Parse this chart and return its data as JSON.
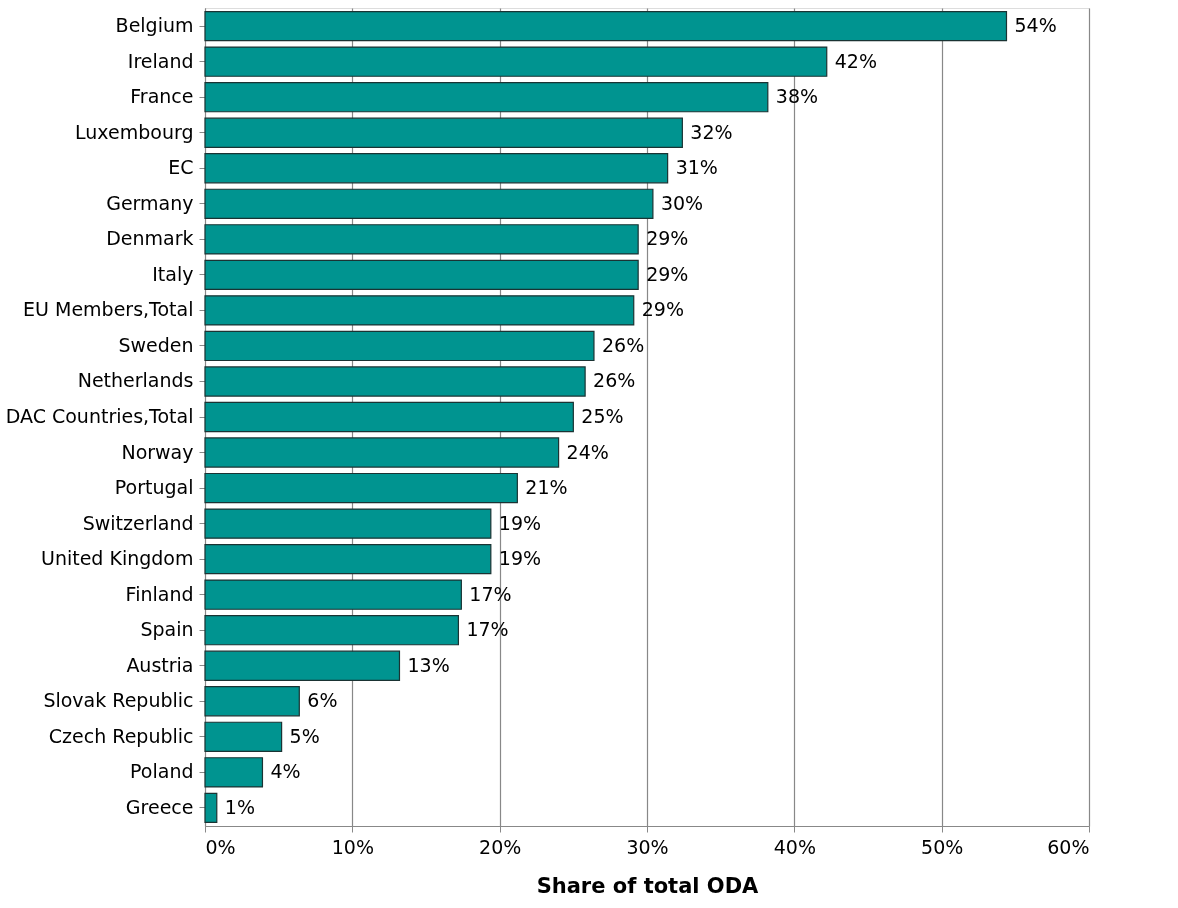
{
  "chart_data": {
    "type": "bar",
    "orientation": "horizontal",
    "xlabel": "Share of total ODA",
    "categories": [
      "Belgium",
      "Ireland",
      "France",
      "Luxembourg",
      "EC",
      "Germany",
      "Denmark",
      "Italy",
      "EU Members,Total",
      "Sweden",
      "Netherlands",
      "DAC Countries,Total",
      "Norway",
      "Portugal",
      "Switzerland",
      "United Kingdom",
      "Finland",
      "Spain",
      "Austria",
      "Slovak Republic",
      "Czech Republic",
      "Poland",
      "Greece"
    ],
    "values": [
      54.4,
      42.2,
      38.2,
      32.4,
      31.4,
      30.4,
      29.4,
      29.4,
      29.1,
      26.4,
      25.8,
      25.0,
      24.0,
      21.2,
      19.4,
      19.4,
      17.4,
      17.2,
      13.2,
      6.4,
      5.2,
      3.9,
      0.8
    ],
    "value_labels": [
      "54%",
      "42%",
      "38%",
      "32%",
      "31%",
      "30%",
      "29%",
      "29%",
      "29%",
      "26%",
      "26%",
      "25%",
      "24%",
      "21%",
      "19%",
      "19%",
      "17%",
      "17%",
      "13%",
      "6%",
      "5%",
      "4%",
      "1%"
    ],
    "color": "#009490",
    "xlim": [
      0,
      60
    ],
    "xticks": [
      {
        "value": 0,
        "label": "0%"
      },
      {
        "value": 10,
        "label": "10%"
      },
      {
        "value": 20,
        "label": "20%"
      },
      {
        "value": 30,
        "label": "30%"
      },
      {
        "value": 40,
        "label": "40%"
      },
      {
        "value": 50,
        "label": "50%"
      },
      {
        "value": 60,
        "label": "60%"
      }
    ],
    "grid": "x"
  }
}
